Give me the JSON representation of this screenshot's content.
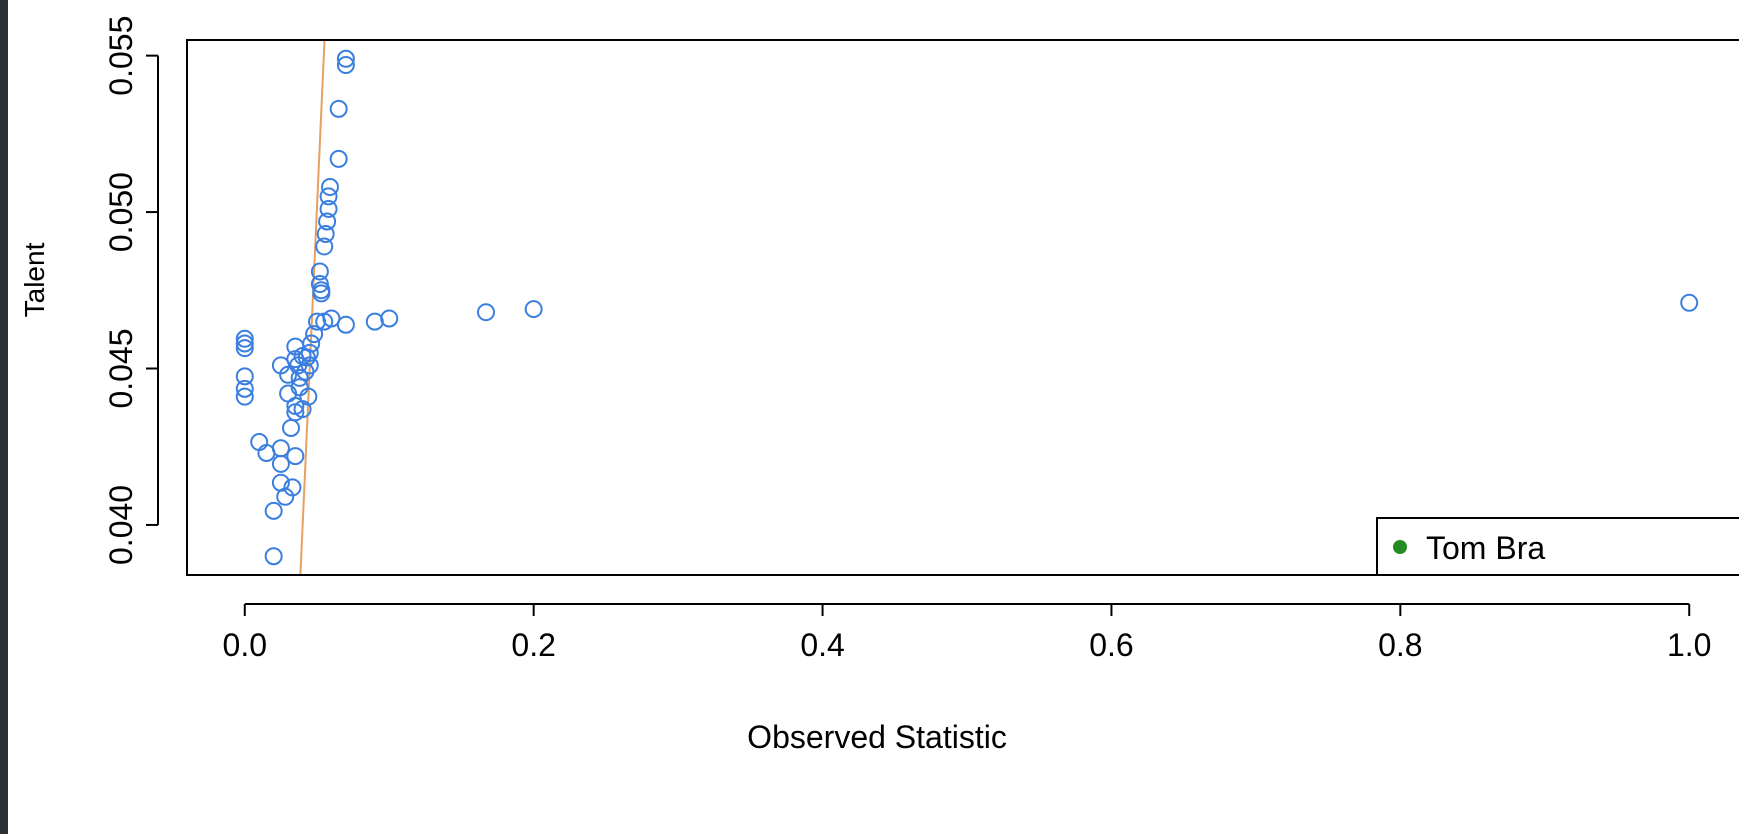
{
  "chart_data": {
    "type": "scatter",
    "title": "",
    "xlabel": "Observed Statistic",
    "ylabel": "Talent",
    "xlim": [
      -0.04,
      1.04
    ],
    "ylim": [
      0.0384,
      0.0555
    ],
    "xticks": [
      0.0,
      0.2,
      0.4,
      0.6,
      0.8,
      1.0
    ],
    "xtick_labels": [
      "0.0",
      "0.2",
      "0.4",
      "0.6",
      "0.8",
      "1.0"
    ],
    "yticks": [
      0.04,
      0.045,
      0.05,
      0.055
    ],
    "ytick_labels": [
      "0.040",
      "0.045",
      "0.050",
      "0.055"
    ],
    "grid": false,
    "legend": {
      "position": "bottom-right",
      "entries": [
        {
          "label": "Tom Bra",
          "color": "#228B22",
          "marker": "filled-circle"
        }
      ]
    },
    "line": {
      "color": "#E8A060",
      "points": [
        [
          0.0385,
          0.0384
        ],
        [
          0.0552,
          0.0555
        ]
      ]
    },
    "points_color": "#3A7FE0",
    "points": [
      [
        0.0,
        0.04595
      ],
      [
        0.0,
        0.0458
      ],
      [
        0.0,
        0.04565
      ],
      [
        0.0,
        0.04475
      ],
      [
        0.0,
        0.04435
      ],
      [
        0.0,
        0.0441
      ],
      [
        0.01,
        0.04265
      ],
      [
        0.015,
        0.0423
      ],
      [
        0.02,
        0.04045
      ],
      [
        0.02,
        0.039
      ],
      [
        0.025,
        0.0451
      ],
      [
        0.025,
        0.04245
      ],
      [
        0.025,
        0.04195
      ],
      [
        0.025,
        0.04135
      ],
      [
        0.028,
        0.0409
      ],
      [
        0.03,
        0.0448
      ],
      [
        0.03,
        0.0442
      ],
      [
        0.032,
        0.0431
      ],
      [
        0.033,
        0.0412
      ],
      [
        0.035,
        0.0422
      ],
      [
        0.035,
        0.0436
      ],
      [
        0.035,
        0.0438
      ],
      [
        0.035,
        0.0453
      ],
      [
        0.035,
        0.0457
      ],
      [
        0.037,
        0.0451
      ],
      [
        0.038,
        0.0447
      ],
      [
        0.038,
        0.0444
      ],
      [
        0.04,
        0.0454
      ],
      [
        0.04,
        0.0437
      ],
      [
        0.042,
        0.0449
      ],
      [
        0.043,
        0.04535
      ],
      [
        0.044,
        0.0441
      ],
      [
        0.045,
        0.0455
      ],
      [
        0.045,
        0.0451
      ],
      [
        0.046,
        0.0458
      ],
      [
        0.048,
        0.0461
      ],
      [
        0.05,
        0.0465
      ],
      [
        0.052,
        0.0481
      ],
      [
        0.052,
        0.0477
      ],
      [
        0.053,
        0.0474
      ],
      [
        0.053,
        0.0475
      ],
      [
        0.055,
        0.0465
      ],
      [
        0.055,
        0.0489
      ],
      [
        0.056,
        0.0493
      ],
      [
        0.057,
        0.0497
      ],
      [
        0.058,
        0.0501
      ],
      [
        0.058,
        0.0505
      ],
      [
        0.059,
        0.0508
      ],
      [
        0.06,
        0.0466
      ],
      [
        0.065,
        0.0517
      ],
      [
        0.065,
        0.0533
      ],
      [
        0.07,
        0.0464
      ],
      [
        0.07,
        0.0547
      ],
      [
        0.07,
        0.0549
      ],
      [
        0.09,
        0.0465
      ],
      [
        0.1,
        0.0466
      ],
      [
        0.167,
        0.0468
      ],
      [
        0.2,
        0.0469
      ],
      [
        1.0,
        0.0471
      ]
    ]
  }
}
